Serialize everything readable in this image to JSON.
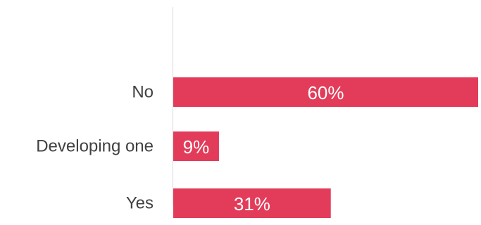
{
  "chart_data": {
    "type": "bar",
    "orientation": "horizontal",
    "categories": [
      "No",
      "Developing one",
      "Yes"
    ],
    "values": [
      60,
      9,
      31
    ],
    "data_labels": [
      "60%",
      "9%",
      "31%"
    ],
    "unit": "%",
    "xlim": [
      0,
      60
    ],
    "grid": false,
    "legend": "none",
    "colors": {
      "bar": "#e23c5a",
      "axis": "#d9d9d9",
      "category_text": "#404040",
      "data_label_text": "#ffffff"
    }
  }
}
